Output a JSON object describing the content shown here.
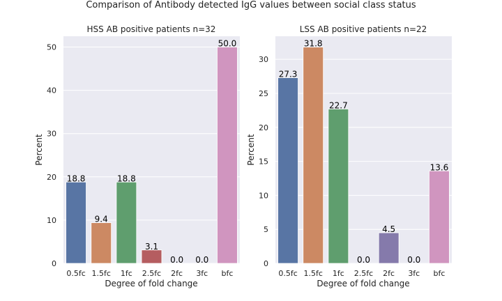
{
  "chart_data": {
    "suptitle": "Comparison of Antibody detected IgG values between social class status",
    "panels": [
      {
        "type": "bar",
        "title": "HSS AB positive patients n=32",
        "xlabel": "Degree of fold change",
        "ylabel": "Percent",
        "categories": [
          "0.5fc",
          "1.5fc",
          "1fc",
          "2.5fc",
          "2fc",
          "3fc",
          "bfc"
        ],
        "values": [
          18.8,
          9.4,
          18.8,
          3.1,
          0.0,
          0.0,
          50.0
        ],
        "labels": [
          "18.8",
          "9.4",
          "18.8",
          "3.1",
          "0.0",
          "0.0",
          "50.0"
        ],
        "ylim": [
          0,
          52.5
        ],
        "yticks": [
          0,
          10,
          20,
          30,
          40,
          50
        ],
        "grid": true
      },
      {
        "type": "bar",
        "title": "LSS AB positive patients n=22",
        "xlabel": "Degree of fold change",
        "ylabel": "Percent",
        "categories": [
          "0.5fc",
          "1.5fc",
          "1fc",
          "2.5fc",
          "2fc",
          "3fc",
          "bfc"
        ],
        "values": [
          27.3,
          31.8,
          22.7,
          0.0,
          4.5,
          0.0,
          13.6
        ],
        "labels": [
          "27.3",
          "31.8",
          "22.7",
          "0.0",
          "4.5",
          "0.0",
          "13.6"
        ],
        "ylim": [
          0,
          33.4
        ],
        "yticks": [
          0,
          5,
          10,
          15,
          20,
          25,
          30
        ],
        "grid": true
      }
    ],
    "colors": [
      "#5875a4",
      "#cc8963",
      "#5f9e6e",
      "#b55d60",
      "#857aab",
      "#8d7866",
      "#d095bf"
    ]
  }
}
